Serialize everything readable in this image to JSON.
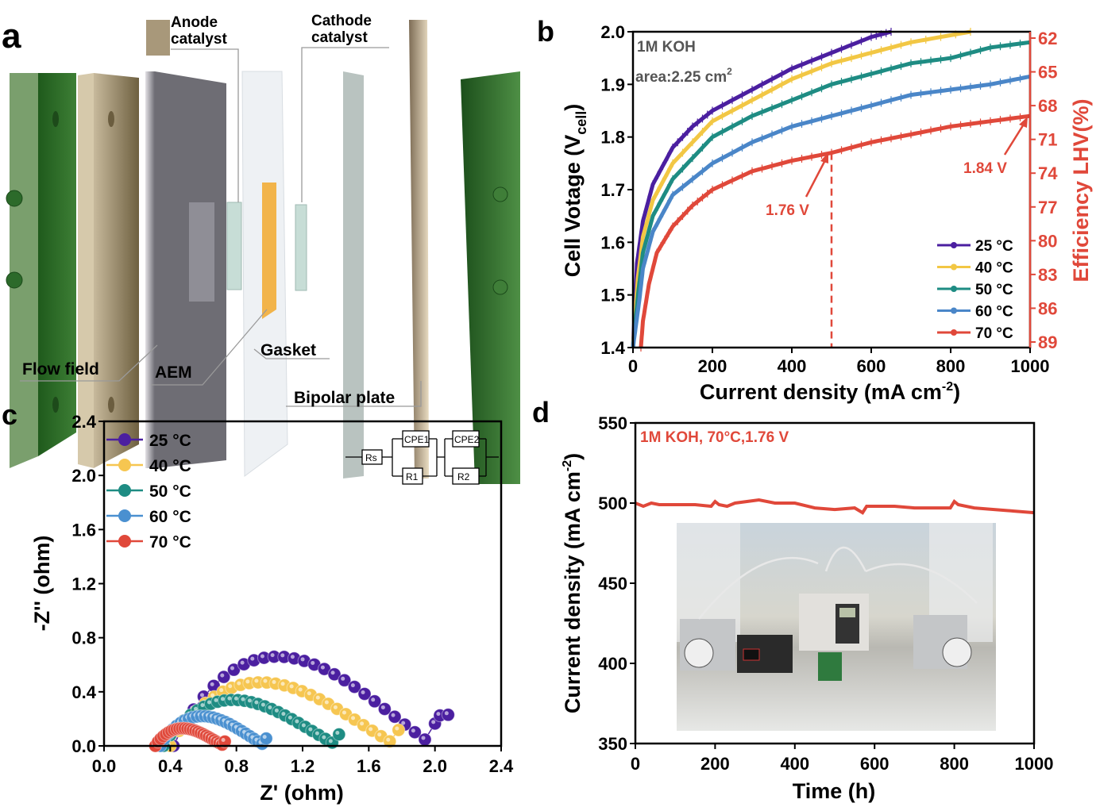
{
  "panels": {
    "a": {
      "letter": "a",
      "labels": {
        "anode": [
          "Anode",
          "catalyst"
        ],
        "cathode": [
          "Cathode",
          "catalyst"
        ],
        "flow_field": "Flow field",
        "aem": "AEM",
        "gasket": "Gasket",
        "bipolar_plate": "Bipolar plate"
      },
      "colors": {
        "endplate": "#2f6b2a",
        "flow": "#a8987a",
        "aem": "#6f6e76",
        "gasket": "#e6eaee",
        "cathode_plate": "#b8c2bf",
        "bipolar": "#cdbf9f",
        "orange": "#f2b44a"
      }
    },
    "b": {
      "letter": "b"
    },
    "c": {
      "letter": "c"
    },
    "d": {
      "letter": "d",
      "inset_photo_description": "photo of electrolyzer test setup with pumps, multimeter reading 1.76"
    }
  },
  "chart_data": [
    {
      "id": "b",
      "type": "line",
      "title": "",
      "xlabel": "Current density (mA cm-2)",
      "ylabel": "Cell Votage (Vcell)",
      "y2label": "Efficiency LHV(%)",
      "xlim": [
        0,
        1000
      ],
      "ylim": [
        1.4,
        2.0
      ],
      "xticks": [
        "0",
        "200",
        "400",
        "600",
        "800",
        "1000"
      ],
      "yticks": [
        "1.4",
        "1.5",
        "1.6",
        "1.7",
        "1.8",
        "1.9",
        "2.0"
      ],
      "y2ticks": [
        "89",
        "86",
        "83",
        "80",
        "77",
        "74",
        "71",
        "68",
        "65",
        "62"
      ],
      "annotations": [
        "1M KOH",
        "area:2.25 cm2",
        "1.76 V",
        "1.84 V"
      ],
      "dashed_line_x": 500,
      "legend": "bottom-right",
      "series": [
        {
          "name": "25 °C",
          "color": "#4b1fa0",
          "x": [
            0,
            10,
            25,
            50,
            100,
            150,
            200,
            300,
            400,
            500,
            600,
            650
          ],
          "y": [
            1.4,
            1.56,
            1.64,
            1.71,
            1.78,
            1.82,
            1.85,
            1.89,
            1.93,
            1.96,
            1.99,
            2.0
          ]
        },
        {
          "name": "40 °C",
          "color": "#f2c744",
          "x": [
            0,
            12,
            25,
            50,
            100,
            200,
            300,
            400,
            500,
            600,
            700,
            850
          ],
          "y": [
            1.4,
            1.53,
            1.61,
            1.68,
            1.75,
            1.83,
            1.87,
            1.91,
            1.94,
            1.96,
            1.98,
            2.0
          ]
        },
        {
          "name": "50 °C",
          "color": "#1e8c83",
          "x": [
            0,
            14,
            25,
            50,
            100,
            200,
            300,
            400,
            500,
            600,
            700,
            800,
            900,
            1000
          ],
          "y": [
            1.4,
            1.51,
            1.58,
            1.65,
            1.72,
            1.8,
            1.84,
            1.87,
            1.9,
            1.92,
            1.94,
            1.95,
            1.97,
            1.98
          ]
        },
        {
          "name": "60 °C",
          "color": "#4a86c8",
          "x": [
            0,
            16,
            25,
            50,
            100,
            200,
            300,
            400,
            500,
            600,
            700,
            800,
            900,
            1000
          ],
          "y": [
            1.4,
            1.49,
            1.55,
            1.62,
            1.69,
            1.75,
            1.79,
            1.82,
            1.84,
            1.86,
            1.88,
            1.89,
            1.9,
            1.915
          ]
        },
        {
          "name": "70 °C",
          "color": "#e0483a",
          "x": [
            20,
            25,
            40,
            60,
            100,
            150,
            200,
            300,
            400,
            500,
            600,
            700,
            800,
            900,
            1000
          ],
          "y": [
            1.4,
            1.45,
            1.52,
            1.58,
            1.63,
            1.67,
            1.7,
            1.735,
            1.755,
            1.77,
            1.79,
            1.805,
            1.82,
            1.83,
            1.84
          ]
        }
      ]
    },
    {
      "id": "c",
      "type": "scatter",
      "xlabel": "Z' (ohm)",
      "ylabel": "-Z'' (ohm)",
      "xlim": [
        0,
        2.4
      ],
      "ylim": [
        0,
        2.4
      ],
      "xticks": [
        "0.0",
        "0.4",
        "0.8",
        "1.2",
        "1.6",
        "2.0",
        "2.4"
      ],
      "yticks": [
        "0.0",
        "0.4",
        "0.8",
        "1.2",
        "1.6",
        "2.0",
        "2.4"
      ],
      "legend": "top-left",
      "circuit": {
        "elements": [
          "Rs",
          "CPE1",
          "R1",
          "CPE2",
          "R2"
        ]
      },
      "series": [
        {
          "name": "25 °C",
          "color": "#4b1fa0",
          "rs": 0.42,
          "rmax": 2.0,
          "peak": 0.66,
          "tail": [
            2.08,
            0.23
          ]
        },
        {
          "name": "40 °C",
          "color": "#f6c651",
          "rs": 0.4,
          "rmax": 1.78,
          "peak": 0.47,
          "tail": null
        },
        {
          "name": "50 °C",
          "color": "#1e8c83",
          "rs": 0.36,
          "rmax": 1.42,
          "peak": 0.34,
          "tail": null
        },
        {
          "name": "60 °C",
          "color": "#4a90d0",
          "rs": 0.34,
          "rmax": 0.98,
          "peak": 0.22,
          "tail": null
        },
        {
          "name": "70 °C",
          "color": "#e0483a",
          "rs": 0.31,
          "rmax": 0.73,
          "peak": 0.13,
          "tail": null
        }
      ]
    },
    {
      "id": "d",
      "type": "line",
      "xlabel": "Time (h)",
      "ylabel": "Current density (mA cm-2)",
      "xlim": [
        0,
        1000
      ],
      "ylim": [
        350,
        550
      ],
      "xticks": [
        "0",
        "200",
        "400",
        "600",
        "800",
        "1000"
      ],
      "yticks": [
        "350",
        "400",
        "450",
        "500",
        "550"
      ],
      "annotation": "1M KOH, 70°C,1.76 V",
      "series": [
        {
          "name": "70 °C, 1.76 V",
          "color": "#e0483a",
          "x": [
            0,
            20,
            40,
            60,
            100,
            150,
            190,
            200,
            210,
            230,
            250,
            280,
            310,
            350,
            400,
            450,
            500,
            550,
            570,
            580,
            600,
            650,
            700,
            750,
            790,
            800,
            810,
            850,
            900,
            950,
            1000
          ],
          "y": [
            500,
            498,
            500,
            499,
            499,
            499,
            498,
            501,
            499,
            498,
            500,
            501,
            502,
            500,
            500,
            497,
            496,
            497,
            494,
            498,
            498,
            498,
            497,
            497,
            497,
            501,
            499,
            497,
            496,
            495,
            494
          ]
        }
      ]
    }
  ]
}
